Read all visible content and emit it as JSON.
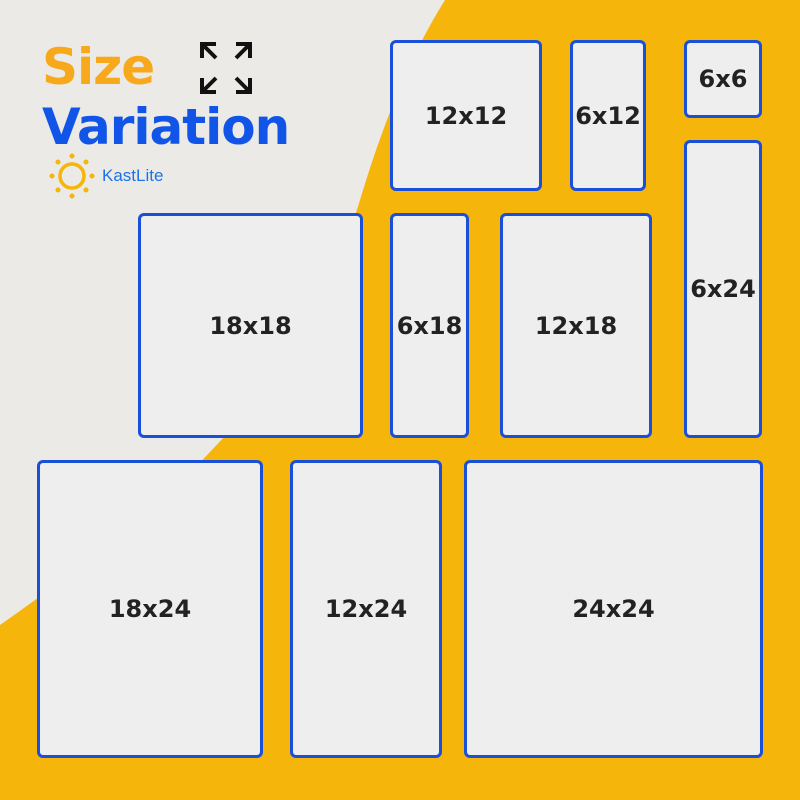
{
  "title": {
    "line1": "Size",
    "line2": "Variation"
  },
  "brand": {
    "name": "KastLite",
    "icon": "sun-icon"
  },
  "colors": {
    "title_orange": "#f7a81b",
    "title_blue": "#1155e8",
    "accent_yellow": "#f5b50a",
    "panel_border": "#1a4fd8"
  },
  "panels": [
    {
      "label": "12x12"
    },
    {
      "label": "6x12"
    },
    {
      "label": "6x6"
    },
    {
      "label": "6x24"
    },
    {
      "label": "18x18"
    },
    {
      "label": "6x18"
    },
    {
      "label": "12x18"
    },
    {
      "label": "18x24"
    },
    {
      "label": "12x24"
    },
    {
      "label": "24x24"
    }
  ]
}
